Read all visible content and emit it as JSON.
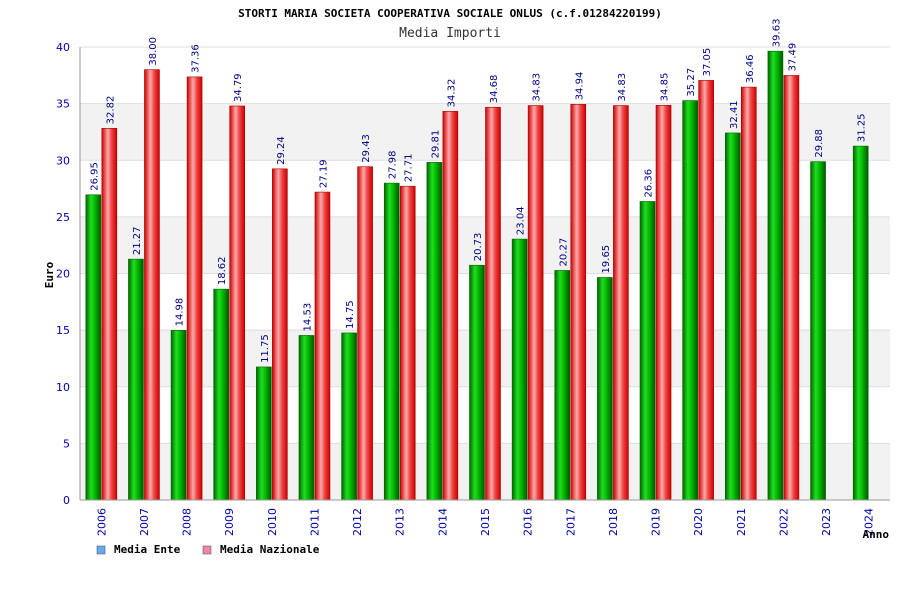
{
  "chart_data": {
    "type": "bar",
    "title": "STORTI MARIA SOCIETA COOPERATIVA SOCIALE ONLUS (c.f.01284220199)",
    "subtitle": "Media Importi",
    "xlabel": "Anno",
    "ylabel": "Euro",
    "ylim": [
      0,
      40
    ],
    "yticks": [
      0,
      5,
      10,
      15,
      20,
      25,
      30,
      35,
      40
    ],
    "grid": true,
    "legend_position": "bottom-left",
    "categories": [
      "2006",
      "2007",
      "2008",
      "2009",
      "2010",
      "2011",
      "2012",
      "2013",
      "2014",
      "2015",
      "2016",
      "2017",
      "2018",
      "2019",
      "2020",
      "2021",
      "2022",
      "2023",
      "2024"
    ],
    "series": [
      {
        "name": "Media Ente",
        "color": "#00aa00",
        "legend_color": "#66aaee",
        "values": [
          26.95,
          21.27,
          14.98,
          18.62,
          11.75,
          14.53,
          14.75,
          27.98,
          29.81,
          20.73,
          23.04,
          20.27,
          19.65,
          26.36,
          35.27,
          32.41,
          39.63,
          29.88,
          31.25
        ],
        "labels": [
          "26.95",
          "21.27",
          "14.98",
          "18.62",
          "11.75",
          "14.53",
          "14.75",
          "27.98",
          "29.81",
          "20.73",
          "23.04",
          "20.27",
          "19.65",
          "26.36",
          "35.27",
          "32.41",
          "39.63",
          "29.88",
          "31.25"
        ]
      },
      {
        "name": "Media Nazionale",
        "color": "#ee2222",
        "legend_color": "#ee88aa",
        "values": [
          32.82,
          38.0,
          37.36,
          34.79,
          29.24,
          27.19,
          29.43,
          27.71,
          34.32,
          34.68,
          34.83,
          34.94,
          34.83,
          34.85,
          37.05,
          36.46,
          37.49,
          null,
          null
        ],
        "labels": [
          "32.82",
          "38.00",
          "37.36",
          "34.79",
          "29.24",
          "27.19",
          "29.43",
          "27.71",
          "34.32",
          "34.68",
          "34.83",
          "34.94",
          "34.83",
          "34.85",
          "37.05",
          "36.46",
          "37.49",
          null,
          null
        ]
      }
    ]
  }
}
